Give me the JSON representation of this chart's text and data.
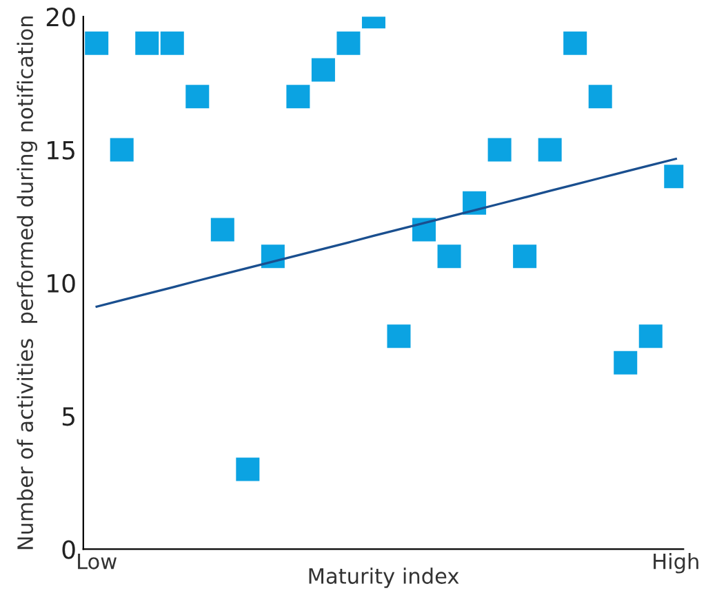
{
  "chart_data": {
    "type": "scatter",
    "xlabel": "Maturity index",
    "ylabel": "Number of activities  performed during notification",
    "categories": [
      "Low",
      null,
      null,
      null,
      null,
      null,
      null,
      null,
      null,
      null,
      null,
      null,
      null,
      null,
      null,
      null,
      null,
      null,
      null,
      null,
      null,
      null,
      null,
      "High"
    ],
    "ylim": [
      0,
      20
    ],
    "yticks": [
      0,
      5,
      10,
      15,
      20
    ],
    "grid": false,
    "series": [
      {
        "color": "#0ba3e2",
        "marker": "square",
        "values": [
          19,
          15,
          19,
          19,
          17,
          12,
          3,
          11,
          17,
          18,
          19,
          20,
          8,
          12,
          11,
          13,
          15,
          11,
          15,
          19,
          17,
          7,
          8,
          14
        ]
      },
      {
        "type": "line",
        "color": "#1a4f8f",
        "values": [
          9.11,
          9.35,
          9.59,
          9.83,
          10.08,
          10.32,
          10.56,
          10.8,
          11.04,
          11.28,
          11.52,
          11.77,
          12.01,
          12.25,
          12.49,
          12.73,
          12.97,
          13.21,
          13.46,
          13.7,
          13.94,
          14.18,
          14.42,
          14.66
        ]
      }
    ]
  }
}
